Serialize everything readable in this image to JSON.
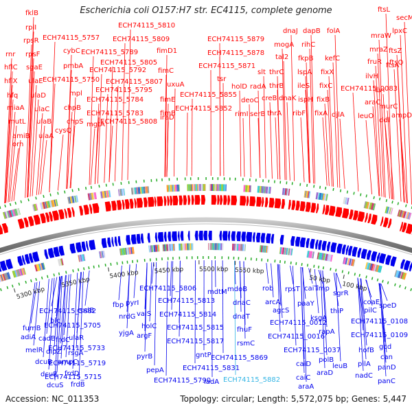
{
  "title": "Escherichia coli O157:H7 str. EC4115, complete genome",
  "footer": {
    "accession": "Accession: NC_011353",
    "summary": "Topology: circular; Length: 5,572,075 bp; Genes: 5,447"
  },
  "colors": {
    "forward": "#ff0000",
    "reverse": "#0000ee",
    "highlight": "#33b5e5",
    "backbone": "#8a8a8a",
    "tick_mark": "#22aa22"
  },
  "scale_labels": [
    "5300 kbp",
    "5350 kbp",
    "5400 kbp",
    "5450 kbp",
    "5500 kbp",
    "5550 kbp",
    "50 kbp",
    "100 kbp"
  ],
  "top_labels": [
    "fklB",
    "rplI",
    "rpsR",
    "rpsF",
    "rnr",
    "hflC",
    "hflX",
    "hfq",
    "miaA",
    "mutL",
    "amiB",
    "orn",
    "sgaE",
    "ulaE",
    "ulaD",
    "ulaC",
    "ulaB",
    "ulaA",
    "ECH74115_5757",
    "ECH74115_5750",
    "cybC",
    "pmbA",
    "mpl",
    "chpB",
    "chpS",
    "cysQ",
    "ECH74115_5810",
    "ECH74115_5809",
    "ECH74115_5789",
    "ECH74115_5805",
    "ECH74115_5792",
    "ECH74115_5807",
    "ECH74115_5795",
    "ECH74115_5784",
    "ECH74115_5783",
    "ECH74115_5808",
    "mgtA",
    "fimD1",
    "fimC",
    "fimE",
    "fimB",
    "iraD",
    "uxuA",
    "ECH74115_5879",
    "ECH74115_5878",
    "ECH74115_5871",
    "ECH74115_5855",
    "ECH74115_5852",
    "tsr",
    "holD",
    "rimI",
    "radA",
    "deoC",
    "slt",
    "thrC",
    "creB",
    "serB",
    "thrB",
    "thrA",
    "dnaK",
    "tal2",
    "mogA",
    "dnaJ",
    "dapB",
    "rihC",
    "fkpB",
    "lspA",
    "ileS",
    "ispH",
    "ribF",
    "fixA",
    "fixB",
    "fixC",
    "fixX",
    "kefC",
    "folA",
    "djlA",
    "ftsL",
    "mraW",
    "lpxC",
    "mraZ",
    "ftsZ",
    "fruR",
    "ftsQ",
    "ilvH",
    "ftsA",
    "ECH74115_0083",
    "araC",
    "leuO",
    "murC",
    "ddl",
    "ampD",
    "secM",
    "ilvI"
  ],
  "bottom_labels": [
    "ECH74115_5682",
    "ECH74115_5705",
    "ECH74115_5733",
    "ECH74115_5719",
    "ECH74115_5715",
    "ECH74115_5806",
    "ECH74115_5813",
    "ECH74115_5814",
    "ECH74115_5815",
    "ECH74115_5817",
    "ECH74115_5831",
    "ECH74115_5869",
    "ECH74115_5790",
    "blc",
    "fumB",
    "adiA",
    "cadB",
    "melR",
    "dcuB",
    "dcuR",
    "dcuS",
    "frdC",
    "dipZ",
    "rsgA",
    "ampC",
    "frdD",
    "frdB",
    "cpdB",
    "ulaR",
    "fbp",
    "yjgA",
    "pyrI",
    "nrdG",
    "valS",
    "argF",
    "holC",
    "pyrB",
    "pepA",
    "mdtM",
    "mdoB",
    "dnaC",
    "dnaT",
    "fhuF",
    "rsmC",
    "gntP",
    "iadA",
    "rob",
    "arcA",
    "agcS",
    "rpsT",
    "caiT",
    "paaY",
    "ECH74115_0012",
    "ECH74115_0016",
    "ECH74115_0037",
    "imp",
    "ksgA",
    "sgrR",
    "thiP",
    "leuB",
    "rapA",
    "polB",
    "araD",
    "caiD",
    "caiC",
    "araA",
    "coaE",
    "pilC",
    "ECH74115_0108",
    "ECH74115_0109",
    "speD",
    "hofB",
    "gcd",
    "can",
    "pilA",
    "panD",
    "nadC",
    "panC"
  ],
  "highlight_label": "ECH74115_5882"
}
